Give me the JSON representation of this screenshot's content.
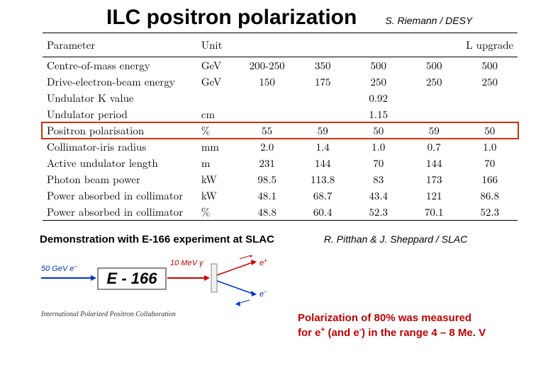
{
  "header": {
    "title": "ILC positron polarization",
    "author": "S. Riemann / DESY"
  },
  "table": {
    "columns": [
      "Parameter",
      "Unit",
      "",
      "",
      "",
      "",
      "L upgrade"
    ],
    "rows": [
      {
        "param": "Centre-of-mass energy",
        "unit": "GeV",
        "v": [
          "200-250",
          "350",
          "500",
          "500",
          "500"
        ]
      },
      {
        "param": "Drive-electron-beam energy",
        "unit": "GeV",
        "v": [
          "150",
          "175",
          "250",
          "250",
          "250"
        ]
      },
      {
        "param": "Undulator K value",
        "unit": "",
        "v": [
          "",
          "",
          "0.92",
          "",
          ""
        ],
        "span": "center"
      },
      {
        "param": "Undulator period",
        "unit": "cm",
        "v": [
          "",
          "",
          "1.15",
          "",
          ""
        ],
        "span": "center"
      },
      {
        "param": "Positron polarisation",
        "unit": "%",
        "v": [
          "55",
          "59",
          "50",
          "59",
          "50"
        ],
        "highlight": true
      },
      {
        "param": "Collimator-iris radius",
        "unit": "mm",
        "v": [
          "2.0",
          "1.4",
          "1.0",
          "0.7",
          "1.0"
        ]
      },
      {
        "param": "Active undulator length",
        "unit": "m",
        "v": [
          "231",
          "144",
          "70",
          "144",
          "70"
        ]
      },
      {
        "param": "Photon beam power",
        "unit": "kW",
        "v": [
          "98.5",
          "113.8",
          "83",
          "173",
          "166"
        ]
      },
      {
        "param": "Power absorbed in collimator",
        "unit": "kW",
        "v": [
          "48.1",
          "68.7",
          "43.4",
          "121",
          "86.8"
        ]
      },
      {
        "param": "Power absorbed in collimator",
        "unit": "%",
        "v": [
          "48.8",
          "60.4",
          "52.3",
          "70.1",
          "52.3"
        ]
      }
    ],
    "highlight_color": "#cc3300"
  },
  "demonstration": {
    "text": "Demonstration with E-166 experiment at SLAC",
    "author": "R. Pitthan & J. Sheppard / SLAC"
  },
  "diagram": {
    "beam_energy": "50 GeV e",
    "beam_energy_sup": "−",
    "experiment": "E - 166",
    "photon": "10 MeV γ",
    "eplus": "e",
    "eplus_sup": "+",
    "eminus": "e",
    "eminus_sup": "−",
    "caption": "International Polarized Positron Collaboration",
    "colors": {
      "beam_blue": "#0033cc",
      "photon_red": "#cc0000",
      "box_border": "#666666",
      "eplus": "#cc0000",
      "eminus": "#0033cc"
    }
  },
  "polarization": {
    "line1_a": "Polarization of 80% was measured",
    "line2_a": "for e",
    "line2_sup1": "+",
    "line2_b": " (and e",
    "line2_sup2": "-",
    "line2_c": ") in the range 4 – 8 Me. V",
    "color": "#c00000"
  }
}
